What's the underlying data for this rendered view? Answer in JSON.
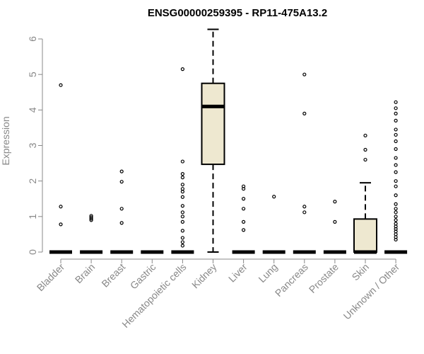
{
  "chart_data": {
    "type": "box",
    "title": "ENSG00000259395 - RP11-475A13.2",
    "ylabel": "Expression",
    "xlabel": "",
    "ylim": [
      0,
      6
    ],
    "yticks": [
      "0",
      "1",
      "2",
      "3",
      "4",
      "5",
      "6"
    ],
    "box_color": "#EEE8D0",
    "line_color": "#000000",
    "axis_color": "#888888",
    "categories": [
      "Bladder",
      "Brain",
      "Breast",
      "Gastric",
      "Hematopoietic cells",
      "Kidney",
      "Liver",
      "Lung",
      "Pancreas",
      "Prostate",
      "Skin",
      "Unknown / Other"
    ],
    "boxes": [
      {
        "category": "Bladder",
        "q1": 0,
        "median": 0,
        "q3": 0,
        "whisker_low": 0,
        "whisker_high": 0,
        "outliers": [
          0.78,
          1.28,
          4.7
        ]
      },
      {
        "category": "Brain",
        "q1": 0,
        "median": 0,
        "q3": 0,
        "whisker_low": 0,
        "whisker_high": 0,
        "outliers": [
          0.9,
          0.94,
          0.98,
          1.02
        ]
      },
      {
        "category": "Breast",
        "q1": 0,
        "median": 0,
        "q3": 0,
        "whisker_low": 0,
        "whisker_high": 0,
        "outliers": [
          0.82,
          1.22,
          1.98,
          2.27
        ]
      },
      {
        "category": "Gastric",
        "q1": 0,
        "median": 0,
        "q3": 0,
        "whisker_low": 0,
        "whisker_high": 0,
        "outliers": []
      },
      {
        "category": "Hematopoietic cells",
        "q1": 0,
        "median": 0,
        "q3": 0,
        "whisker_low": 0,
        "whisker_high": 0,
        "outliers": [
          0.18,
          0.28,
          0.4,
          0.6,
          0.85,
          1.0,
          1.12,
          1.3,
          1.55,
          1.7,
          1.78,
          1.9,
          2.1,
          2.2,
          2.55,
          5.15
        ]
      },
      {
        "category": "Kidney",
        "q1": 2.47,
        "median": 4.1,
        "q3": 4.75,
        "whisker_low": 0,
        "whisker_high": 6.27,
        "outliers": []
      },
      {
        "category": "Liver",
        "q1": 0,
        "median": 0,
        "q3": 0,
        "whisker_low": 0,
        "whisker_high": 0,
        "outliers": [
          0.62,
          0.85,
          1.22,
          1.5,
          1.78,
          1.85
        ]
      },
      {
        "category": "Lung",
        "q1": 0,
        "median": 0,
        "q3": 0,
        "whisker_low": 0,
        "whisker_high": 0,
        "outliers": [
          1.56
        ]
      },
      {
        "category": "Pancreas",
        "q1": 0,
        "median": 0,
        "q3": 0,
        "whisker_low": 0,
        "whisker_high": 0,
        "outliers": [
          1.12,
          1.28,
          3.9,
          5.0
        ]
      },
      {
        "category": "Prostate",
        "q1": 0,
        "median": 0,
        "q3": 0,
        "whisker_low": 0,
        "whisker_high": 0,
        "outliers": [
          0.85,
          1.42
        ]
      },
      {
        "category": "Skin",
        "q1": 0,
        "median": 0,
        "q3": 0.93,
        "whisker_low": 0,
        "whisker_high": 1.95,
        "outliers": [
          2.6,
          2.88,
          3.28
        ]
      },
      {
        "category": "Unknown / Other",
        "q1": 0,
        "median": 0,
        "q3": 0,
        "whisker_low": 0,
        "whisker_high": 0,
        "outliers": [
          0.35,
          0.42,
          0.5,
          0.58,
          0.65,
          0.72,
          0.8,
          0.9,
          1.0,
          1.12,
          1.22,
          1.35,
          1.6,
          1.85,
          2.0,
          2.25,
          2.45,
          2.65,
          2.9,
          3.12,
          3.3,
          3.45,
          3.7,
          3.9,
          4.05,
          4.22
        ]
      }
    ]
  }
}
